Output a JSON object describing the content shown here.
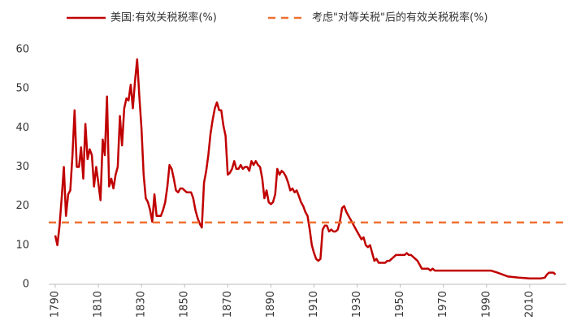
{
  "chart_data": {
    "type": "line",
    "legend": "top",
    "xlim": [
      1787,
      2027
    ],
    "xticks": [
      1790,
      1810,
      1830,
      1850,
      1870,
      1890,
      1910,
      1930,
      1950,
      1970,
      1990,
      2010
    ],
    "ylim": [
      0,
      60
    ],
    "yticks": [
      0,
      10,
      20,
      30,
      40,
      50,
      60
    ],
    "grid": false,
    "series": [
      {
        "name": "美国:有效关税税率(%)",
        "color": "#c00000",
        "dash": false,
        "x": [
          1790,
          1791,
          1792,
          1793,
          1794,
          1795,
          1796,
          1797,
          1798,
          1799,
          1800,
          1801,
          1802,
          1803,
          1804,
          1805,
          1806,
          1807,
          1808,
          1809,
          1810,
          1811,
          1812,
          1813,
          1814,
          1815,
          1816,
          1817,
          1818,
          1819,
          1820,
          1821,
          1822,
          1823,
          1824,
          1825,
          1826,
          1827,
          1828,
          1829,
          1830,
          1831,
          1832,
          1833,
          1834,
          1835,
          1836,
          1837,
          1838,
          1839,
          1840,
          1841,
          1842,
          1843,
          1844,
          1845,
          1846,
          1847,
          1848,
          1849,
          1850,
          1851,
          1852,
          1853,
          1854,
          1855,
          1856,
          1857,
          1858,
          1859,
          1860,
          1861,
          1862,
          1863,
          1864,
          1865,
          1866,
          1867,
          1868,
          1869,
          1870,
          1871,
          1872,
          1873,
          1874,
          1875,
          1876,
          1877,
          1878,
          1879,
          1880,
          1881,
          1882,
          1883,
          1884,
          1885,
          1886,
          1887,
          1888,
          1889,
          1890,
          1891,
          1892,
          1893,
          1894,
          1895,
          1896,
          1897,
          1898,
          1899,
          1900,
          1901,
          1902,
          1903,
          1904,
          1905,
          1906,
          1907,
          1908,
          1909,
          1910,
          1911,
          1912,
          1913,
          1914,
          1915,
          1916,
          1917,
          1918,
          1919,
          1920,
          1921,
          1922,
          1923,
          1924,
          1925,
          1926,
          1927,
          1928,
          1929,
          1930,
          1931,
          1932,
          1933,
          1934,
          1935,
          1936,
          1937,
          1938,
          1939,
          1940,
          1941,
          1942,
          1943,
          1944,
          1945,
          1946,
          1947,
          1948,
          1949,
          1950,
          1951,
          1952,
          1953,
          1954,
          1955,
          1956,
          1957,
          1958,
          1959,
          1960,
          1961,
          1962,
          1963,
          1964,
          1965,
          1966,
          1967,
          1970,
          1975,
          1980,
          1985,
          1990,
          1992,
          1995,
          2000,
          2005,
          2010,
          2015,
          2017,
          2018,
          2019,
          2020,
          2021,
          2022
        ],
        "values": [
          12.5,
          10,
          15,
          22,
          30,
          17.5,
          23,
          24,
          33,
          44.5,
          30,
          30,
          35,
          27,
          41,
          32,
          34.5,
          33,
          25,
          30,
          26,
          21.5,
          37,
          33,
          48,
          25,
          27,
          24.5,
          28,
          30,
          43,
          35.5,
          45,
          47.5,
          47,
          51,
          45,
          52,
          57.5,
          48,
          40,
          28,
          22,
          21,
          19,
          16,
          23,
          17.5,
          17.5,
          17.5,
          19,
          21,
          25,
          30.5,
          29.5,
          27,
          24,
          23.5,
          24.5,
          24.5,
          24,
          23.5,
          23.5,
          23.5,
          22,
          19,
          17,
          15.5,
          14.5,
          26,
          29,
          33,
          38.5,
          42,
          45,
          46.5,
          44.5,
          44.5,
          40.5,
          38,
          28,
          28.5,
          29.5,
          31.5,
          29.5,
          29.5,
          30.5,
          29.5,
          30,
          30,
          29,
          31.5,
          30.5,
          31.5,
          30.5,
          30,
          27,
          22,
          24,
          21,
          20.5,
          21,
          23,
          29.5,
          28,
          29,
          28.5,
          27.5,
          26,
          24,
          24.5,
          23.5,
          24,
          22.5,
          21,
          20,
          18.5,
          17.5,
          14,
          10,
          8,
          6.5,
          6,
          6.5,
          14,
          15,
          15,
          13.5,
          14,
          13.5,
          13.5,
          14,
          16,
          19.5,
          20,
          18.5,
          17.5,
          16.5,
          15.5,
          14.5,
          13.5,
          12.5,
          11.5,
          12,
          10,
          9.5,
          10,
          8,
          6,
          6.5,
          5.5,
          5.5,
          5.5,
          5.5,
          6,
          6,
          6.5,
          7,
          7.5,
          7.5,
          7.5,
          7.5,
          7.5,
          8,
          7.5,
          7.5,
          7,
          6.5,
          6,
          5,
          4,
          4,
          4,
          4,
          3.5,
          4,
          3.5,
          3.5,
          3.5,
          3.5,
          3.5,
          3.5,
          3.5,
          3.5,
          3,
          2,
          1.7,
          1.5,
          1.5,
          1.7,
          2.5,
          3,
          3,
          3,
          2.5
        ]
      },
      {
        "name": "考虑\"对等关税\"后的有效关税税率(%)",
        "color": "#f07030",
        "dash": true,
        "x": [
          1787,
          2026
        ],
        "values": [
          15.8,
          15.8
        ]
      }
    ]
  }
}
